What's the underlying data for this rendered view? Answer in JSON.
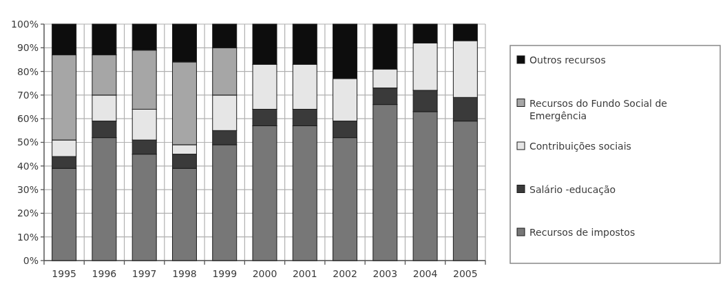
{
  "chart_data": {
    "type": "bar",
    "stacked": true,
    "categories": [
      "1995",
      "1996",
      "1997",
      "1998",
      "1999",
      "2000",
      "2001",
      "2002",
      "2003",
      "2004",
      "2005"
    ],
    "series": [
      {
        "name": "Recursos de impostos",
        "color": "#777777",
        "values": [
          39,
          52,
          45,
          39,
          49,
          57,
          57,
          52,
          66,
          63,
          59
        ]
      },
      {
        "name": "Salário -educação",
        "color": "#3a3a3a",
        "values": [
          5,
          7,
          6,
          6,
          6,
          7,
          7,
          7,
          7,
          9,
          10
        ]
      },
      {
        "name": "Contribuições sociais",
        "color": "#e6e6e6",
        "values": [
          7,
          11,
          13,
          4,
          15,
          19,
          19,
          18,
          8,
          20,
          24
        ]
      },
      {
        "name": "Recursos do Fundo Social de Emergência",
        "color": "#a6a6a6",
        "values": [
          36,
          17,
          25,
          35,
          20,
          null,
          null,
          null,
          null,
          null,
          null
        ]
      },
      {
        "name": "Outros recursos",
        "color": "#0d0d0d",
        "values": [
          13,
          13,
          11,
          16,
          10,
          17,
          17,
          23,
          19,
          8,
          7
        ]
      }
    ],
    "ylim": [
      0,
      100
    ],
    "yticks": [
      {
        "value": 0,
        "label": "0%"
      },
      {
        "value": 10,
        "label": "10%"
      },
      {
        "value": 20,
        "label": "20%"
      },
      {
        "value": 30,
        "label": "30%"
      },
      {
        "value": 40,
        "label": "40%"
      },
      {
        "value": 50,
        "label": "50%"
      },
      {
        "value": 60,
        "label": "60%"
      },
      {
        "value": 70,
        "label": "70%"
      },
      {
        "value": 80,
        "label": "80%"
      },
      {
        "value": 90,
        "label": "90%"
      },
      {
        "value": 100,
        "label": "100%"
      }
    ],
    "grid": true,
    "legend": "right"
  }
}
